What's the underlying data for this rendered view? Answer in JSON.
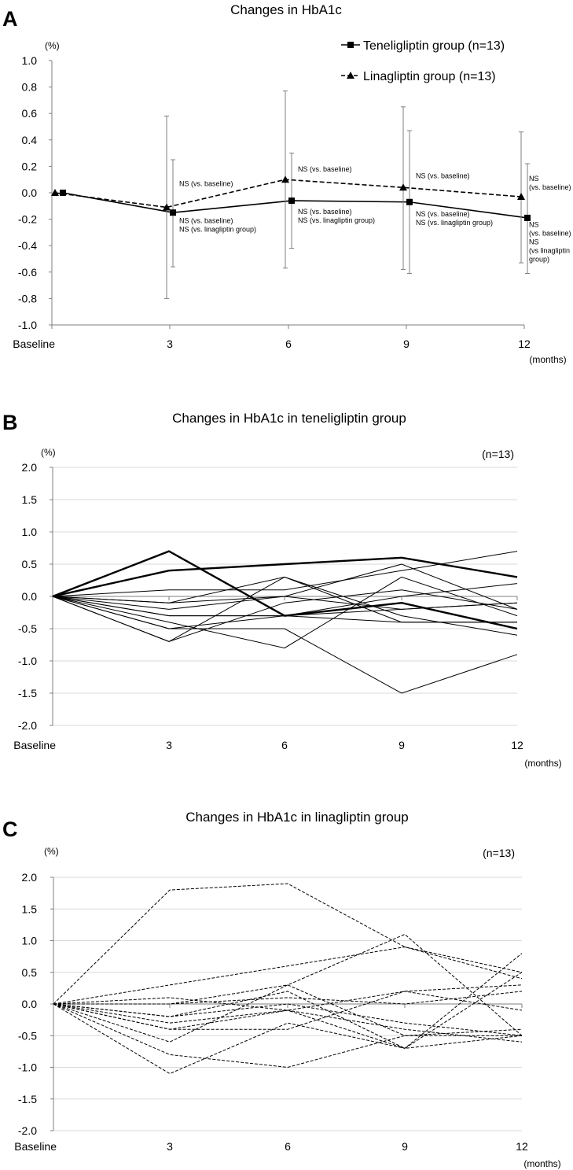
{
  "colors": {
    "line": "#000000",
    "axis": "#7f7f7f",
    "grid": "#d9d9d9",
    "errorbar": "#7f7f7f"
  },
  "chart_data": [
    {
      "id": "A",
      "panel": "A",
      "type": "line",
      "title": "Changes in HbA1c",
      "ylabel": "(%)",
      "xlabel": "(months)",
      "categories": [
        "Baseline",
        "3",
        "6",
        "9",
        "12"
      ],
      "ylim": [
        -1.0,
        1.0
      ],
      "yticks": [
        "1.0",
        "0.8",
        "0.6",
        "0.4",
        "0.2",
        "0.0",
        "-0.2",
        "-0.4",
        "-0.6",
        "-0.8",
        "-1.0"
      ],
      "grid": false,
      "legend_position": "top-right",
      "series": [
        {
          "name": "Teneligliptin group (n=13)",
          "marker": "square",
          "dash": "solid",
          "values": [
            0.0,
            -0.15,
            -0.06,
            -0.07,
            -0.19
          ],
          "err_low": [
            null,
            -0.56,
            -0.42,
            -0.61,
            -0.61
          ],
          "err_high": [
            null,
            0.25,
            0.3,
            0.47,
            0.22
          ]
        },
        {
          "name": "Linagliptin group (n=13)",
          "marker": "triangle",
          "dash": "dashed",
          "values": [
            0.0,
            -0.11,
            0.1,
            0.04,
            -0.03
          ],
          "err_low": [
            null,
            -0.8,
            -0.57,
            -0.58,
            -0.53
          ],
          "err_high": [
            null,
            0.58,
            0.77,
            0.65,
            0.46
          ]
        }
      ],
      "annotations": [
        {
          "cat": 1,
          "y": 0.05,
          "lines": [
            "NS (vs. baseline)"
          ]
        },
        {
          "cat": 1,
          "y": -0.23,
          "lines": [
            "NS (vs. baseline)",
            "NS (vs. linagliptin group)"
          ]
        },
        {
          "cat": 2,
          "y": 0.16,
          "lines": [
            "NS (vs. baseline)"
          ]
        },
        {
          "cat": 2,
          "y": -0.16,
          "lines": [
            "NS (vs. baseline)",
            "NS (vs. linagliptin group)"
          ]
        },
        {
          "cat": 3,
          "y": 0.11,
          "lines": [
            "NS (vs. baseline)"
          ]
        },
        {
          "cat": 3,
          "y": -0.18,
          "lines": [
            "NS (vs. baseline)",
            "NS (vs. linagliptin group)"
          ]
        },
        {
          "cat": 4,
          "y": 0.09,
          "lines": [
            "NS",
            "(vs. baseline)"
          ]
        },
        {
          "cat": 4,
          "y": -0.26,
          "lines": [
            "NS",
            "(vs. baseline)",
            "NS",
            "(vs linagliptin",
            "group)"
          ]
        }
      ]
    },
    {
      "id": "B",
      "panel": "B",
      "type": "line",
      "title": "Changes in HbA1c in teneligliptin group",
      "ylabel": "(%)",
      "xlabel": "(months)",
      "n_label": "(n=13)",
      "categories": [
        "Baseline",
        "3",
        "6",
        "9",
        "12"
      ],
      "ylim": [
        -2.0,
        2.0
      ],
      "yticks": [
        "2.0",
        "1.5",
        "1.0",
        "0.5",
        "0.0",
        "-0.5",
        "-1.0",
        "-1.5",
        "-2.0"
      ],
      "grid": true,
      "dash": "solid",
      "series": [
        {
          "values": [
            0,
            0.7,
            -0.3,
            -0.1,
            -0.5
          ],
          "bold": true
        },
        {
          "values": [
            0,
            0.4,
            0.5,
            0.6,
            0.3
          ],
          "bold": true
        },
        {
          "values": [
            0,
            0.1,
            0.1,
            0.4,
            0.7
          ]
        },
        {
          "values": [
            0,
            -0.1,
            0.3,
            -0.3,
            -0.6
          ]
        },
        {
          "values": [
            0,
            -0.3,
            -0.3,
            0.0,
            0.2
          ]
        },
        {
          "values": [
            0,
            -0.5,
            -0.5,
            -1.5,
            -0.9
          ]
        },
        {
          "values": [
            0,
            -0.7,
            0.3,
            -0.4,
            -0.4
          ]
        },
        {
          "values": [
            0,
            -0.4,
            -0.8,
            0.3,
            -0.3
          ]
        },
        {
          "values": [
            0,
            -0.1,
            0.0,
            -0.2,
            -0.1
          ]
        },
        {
          "values": [
            0,
            -0.2,
            0.0,
            0.5,
            -0.2
          ]
        },
        {
          "values": [
            0,
            -0.5,
            -0.3,
            -0.4,
            -0.4
          ]
        },
        {
          "values": [
            0,
            -0.7,
            -0.1,
            0.1,
            -0.2
          ]
        },
        {
          "values": [
            0,
            -0.3,
            -0.3,
            -0.2,
            -0.1
          ]
        }
      ]
    },
    {
      "id": "C",
      "panel": "C",
      "type": "line",
      "title": "Changes in HbA1c in linagliptin group",
      "ylabel": "(%)",
      "xlabel": "(months)",
      "n_label": "(n=13)",
      "categories": [
        "Baseline",
        "3",
        "6",
        "9",
        "12"
      ],
      "ylim": [
        -2.0,
        2.0
      ],
      "yticks": [
        "2.0",
        "1.5",
        "1.0",
        "0.5",
        "0.0",
        "-0.5",
        "-1.0",
        "-1.5",
        "-2.0"
      ],
      "grid": true,
      "dash": "dashed",
      "series": [
        {
          "values": [
            0,
            1.8,
            1.9,
            0.9,
            0.5
          ]
        },
        {
          "values": [
            0,
            0.3,
            0.6,
            0.9,
            0.4
          ]
        },
        {
          "values": [
            0,
            -1.1,
            -0.3,
            -0.7,
            0.8
          ]
        },
        {
          "values": [
            0,
            -0.8,
            -1.0,
            -0.5,
            -0.5
          ]
        },
        {
          "values": [
            0,
            -0.6,
            0.3,
            1.1,
            -0.5
          ]
        },
        {
          "values": [
            0,
            0.1,
            -0.1,
            0.2,
            0.3
          ]
        },
        {
          "values": [
            0,
            -0.2,
            0.2,
            -0.7,
            0.5
          ]
        },
        {
          "values": [
            0,
            -0.4,
            -0.4,
            0.2,
            -0.1
          ]
        },
        {
          "values": [
            0,
            -0.3,
            -0.1,
            -0.4,
            -0.6
          ]
        },
        {
          "values": [
            0,
            0.0,
            0.1,
            0.0,
            0.2
          ]
        },
        {
          "values": [
            0,
            -0.2,
            0.0,
            -0.3,
            -0.5
          ]
        },
        {
          "values": [
            0,
            0.0,
            0.3,
            -0.5,
            -0.4
          ]
        },
        {
          "values": [
            0,
            -0.4,
            -0.1,
            -0.7,
            -0.5
          ]
        }
      ]
    }
  ]
}
